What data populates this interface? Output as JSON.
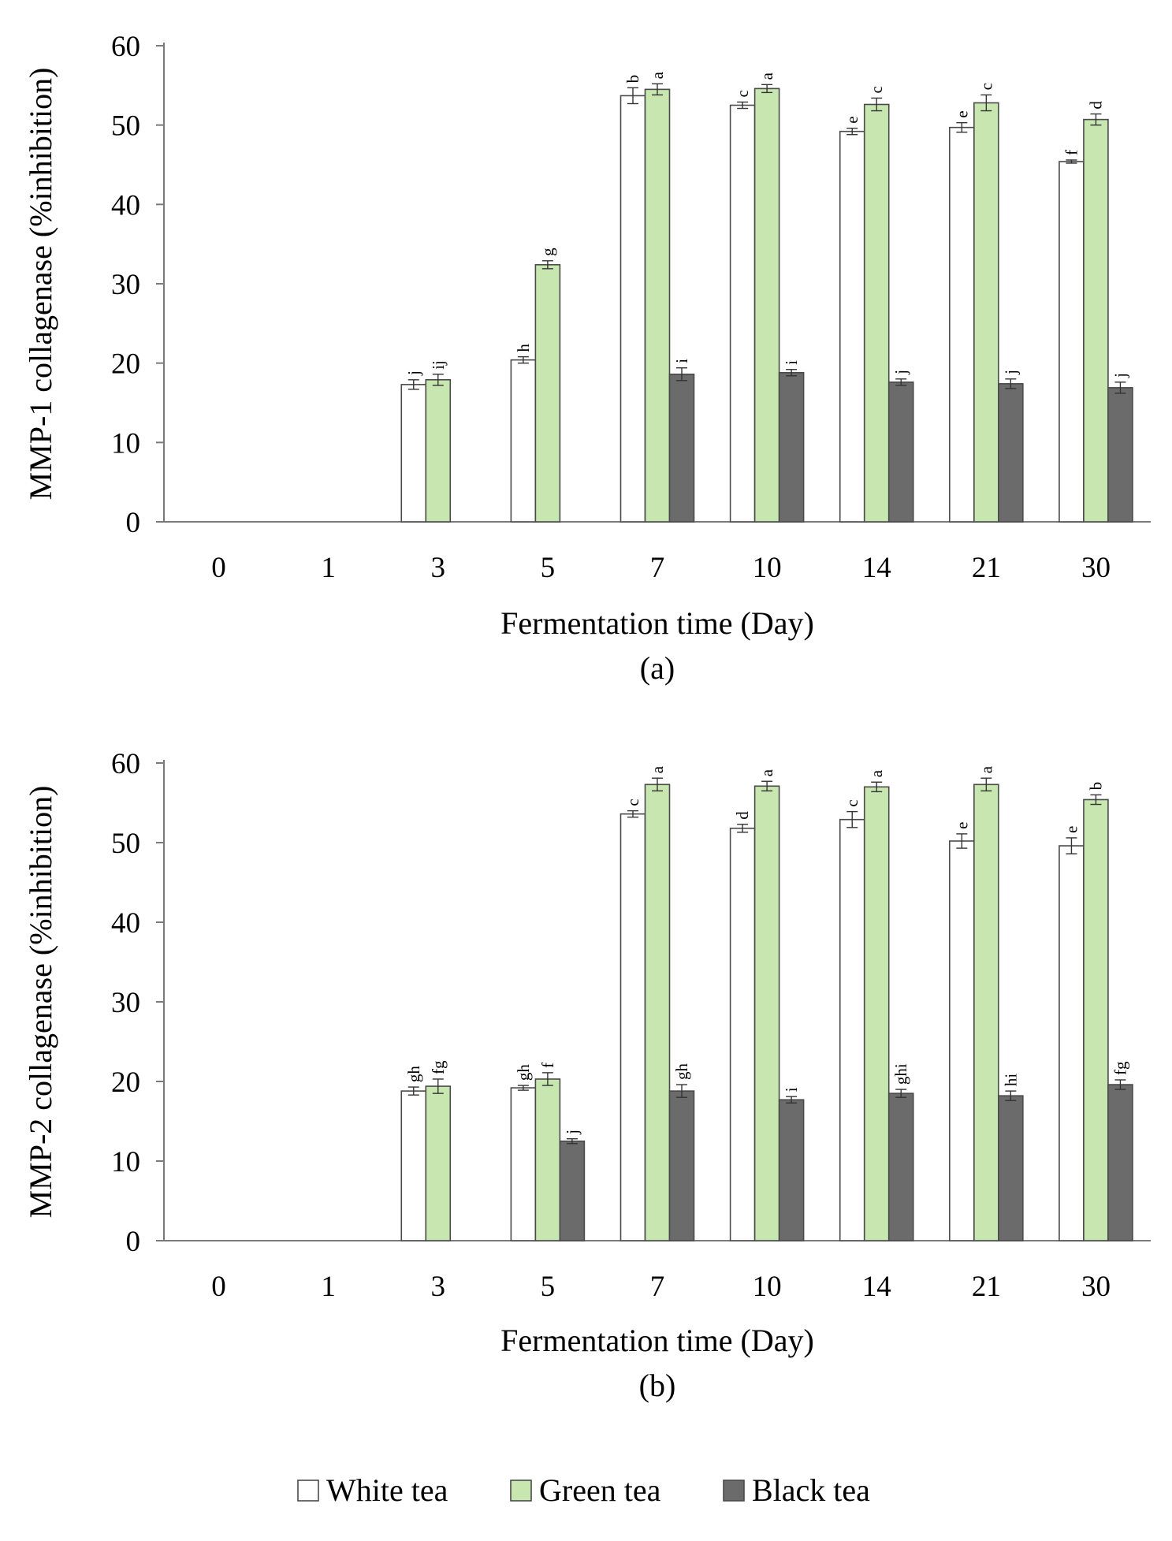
{
  "legend": {
    "items": [
      {
        "label": "White tea",
        "color": "#ffffff"
      },
      {
        "label": "Green tea",
        "color": "#c8e6b0"
      },
      {
        "label": "Black tea",
        "color": "#6b6b6b"
      }
    ]
  },
  "chart_data": [
    {
      "type": "bar",
      "panel_label": "(a)",
      "xlabel": "Fermentation time (Day)",
      "ylabel": "MMP-1 collagenase (%inhibition)",
      "ylim": [
        0,
        60
      ],
      "yticks": [
        0,
        10,
        20,
        30,
        40,
        50,
        60
      ],
      "grid": false,
      "categories": [
        "0",
        "1",
        "3",
        "5",
        "7",
        "10",
        "14",
        "21",
        "30"
      ],
      "series": [
        {
          "name": "White tea",
          "values": [
            null,
            null,
            17.3,
            20.4,
            53.7,
            52.5,
            49.2,
            49.7,
            45.4
          ],
          "errors": [
            null,
            null,
            0.6,
            0.4,
            1.0,
            0.4,
            0.4,
            0.6,
            0.2
          ],
          "sig_labels": [
            "",
            "",
            "j",
            "h",
            "b",
            "c",
            "e",
            "e",
            "f"
          ]
        },
        {
          "name": "Green tea",
          "values": [
            null,
            null,
            17.9,
            32.4,
            54.5,
            54.6,
            52.6,
            52.8,
            50.7
          ],
          "errors": [
            null,
            null,
            0.7,
            0.5,
            0.7,
            0.5,
            0.8,
            1.0,
            0.7
          ],
          "sig_labels": [
            "",
            "",
            "ij",
            "g",
            "a",
            "a",
            "c",
            "c",
            "d"
          ]
        },
        {
          "name": "Black tea",
          "values": [
            null,
            null,
            null,
            null,
            18.6,
            18.8,
            17.6,
            17.4,
            16.9
          ],
          "errors": [
            null,
            null,
            null,
            null,
            0.8,
            0.4,
            0.4,
            0.6,
            0.7
          ],
          "sig_labels": [
            "",
            "",
            "",
            "",
            "i",
            "i",
            "j",
            "j",
            "j"
          ]
        }
      ]
    },
    {
      "type": "bar",
      "panel_label": "(b)",
      "xlabel": "Fermentation time (Day)",
      "ylabel": "MMP-2 collagenase (%inhibition)",
      "ylim": [
        0,
        60
      ],
      "yticks": [
        0,
        10,
        20,
        30,
        40,
        50,
        60
      ],
      "grid": false,
      "categories": [
        "0",
        "1",
        "3",
        "5",
        "7",
        "10",
        "14",
        "21",
        "30"
      ],
      "series": [
        {
          "name": "White tea",
          "values": [
            null,
            null,
            18.8,
            19.2,
            53.6,
            51.8,
            52.9,
            50.2,
            49.6
          ],
          "errors": [
            null,
            null,
            0.5,
            0.3,
            0.4,
            0.5,
            1.0,
            0.9,
            1.0
          ],
          "sig_labels": [
            "",
            "",
            "gh",
            "gh",
            "c",
            "d",
            "c",
            "e",
            "e"
          ]
        },
        {
          "name": "Green tea",
          "values": [
            null,
            null,
            19.4,
            20.3,
            57.3,
            57.1,
            57.0,
            57.3,
            55.4
          ],
          "errors": [
            null,
            null,
            0.9,
            0.8,
            0.8,
            0.6,
            0.6,
            0.8,
            0.6
          ],
          "sig_labels": [
            "",
            "",
            "fg",
            "f",
            "a",
            "a",
            "a",
            "a",
            "b"
          ]
        },
        {
          "name": "Black tea",
          "values": [
            null,
            null,
            null,
            12.5,
            18.8,
            17.7,
            18.5,
            18.2,
            19.6
          ],
          "errors": [
            null,
            null,
            null,
            0.3,
            0.8,
            0.4,
            0.5,
            0.6,
            0.6
          ],
          "sig_labels": [
            "",
            "",
            "",
            "j",
            "gh",
            "i",
            "ghi",
            "hi",
            "fg"
          ]
        }
      ]
    }
  ]
}
